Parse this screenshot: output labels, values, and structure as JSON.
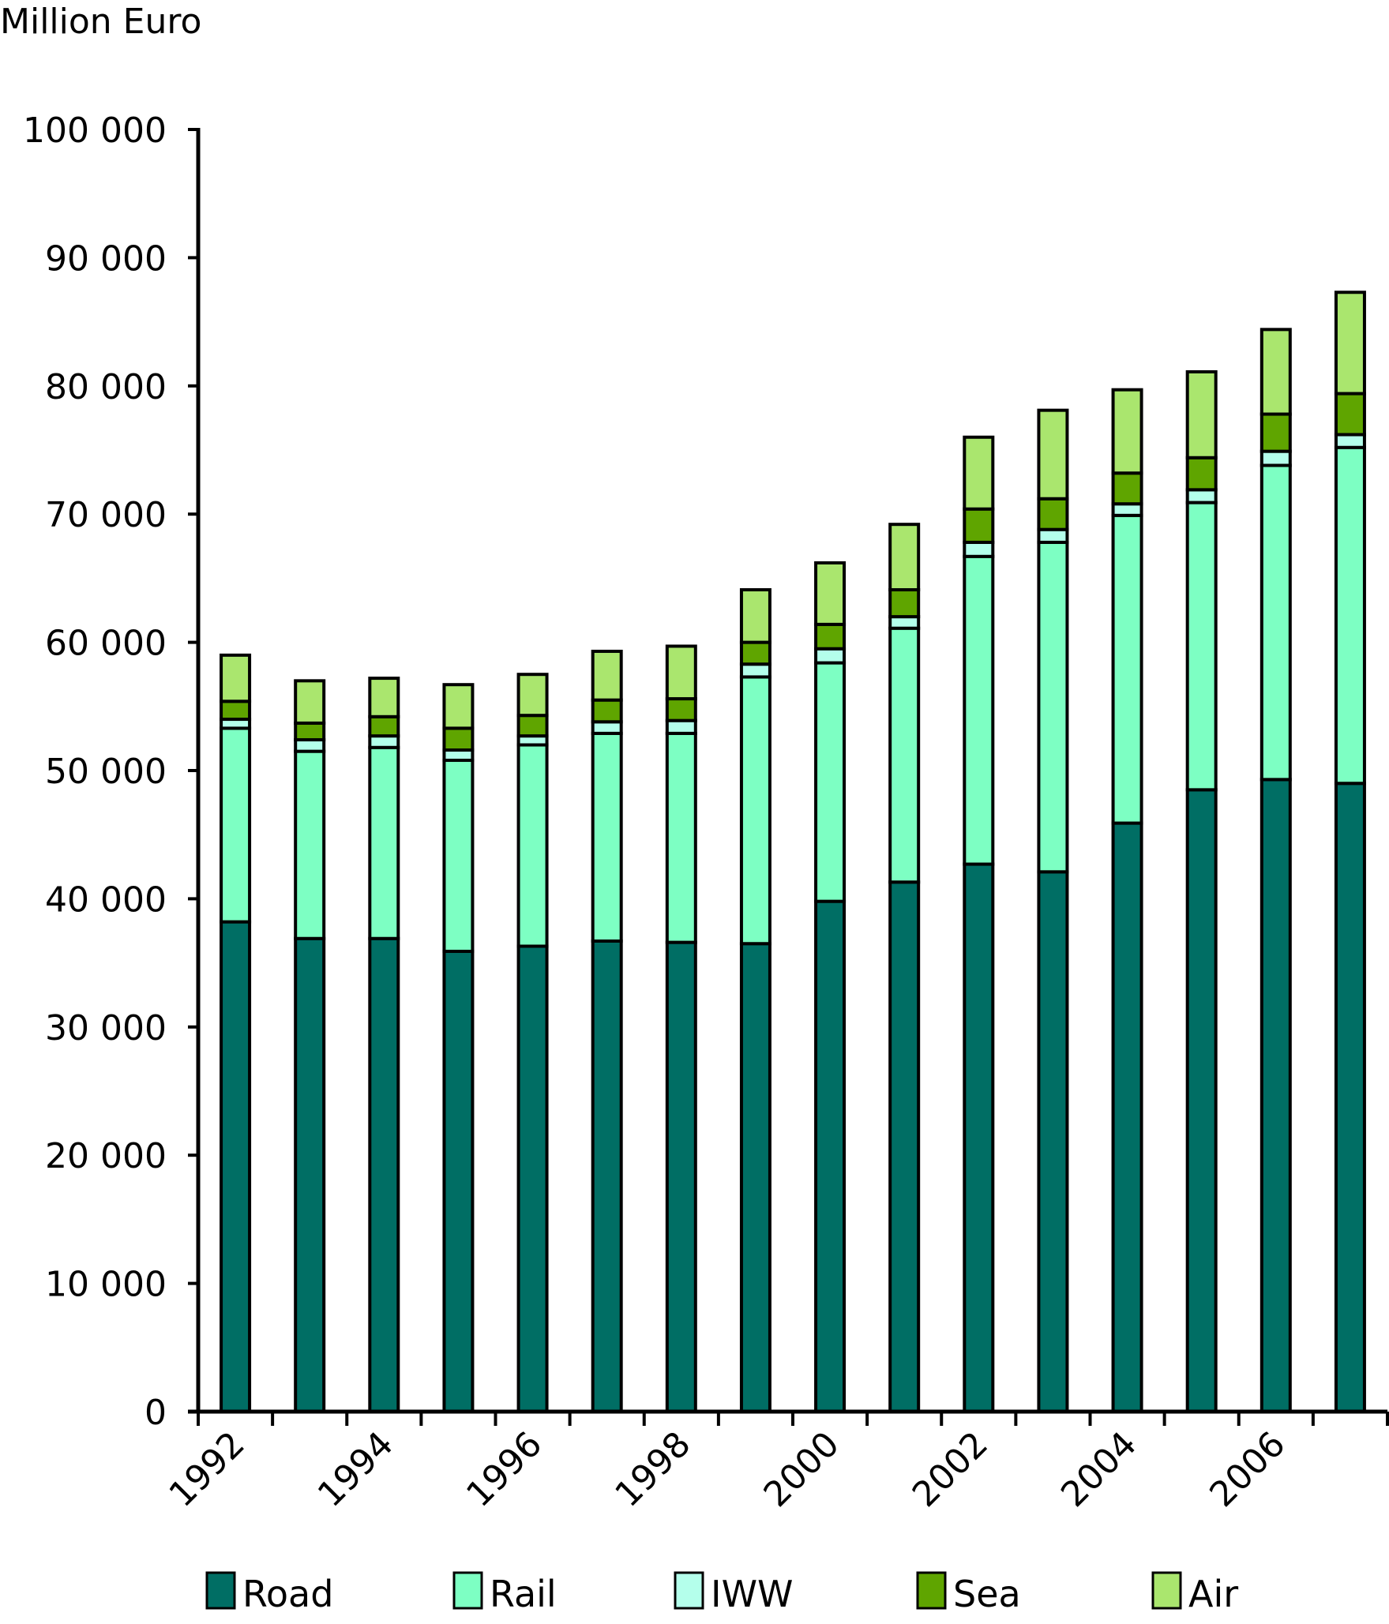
{
  "chart_data": {
    "type": "bar",
    "stacked": true,
    "title": "",
    "ylabel": "Million Euro",
    "xlabel": "",
    "ylim": [
      0,
      100000
    ],
    "yticks": [
      0,
      10000,
      20000,
      30000,
      40000,
      50000,
      60000,
      70000,
      80000,
      90000,
      100000
    ],
    "ytick_labels": [
      "0",
      "10 000",
      "20 000",
      "30 000",
      "40 000",
      "50 000",
      "60 000",
      "70 000",
      "80 000",
      "90 000",
      "100 000"
    ],
    "categories": [
      "1992",
      "1993",
      "1994",
      "1995",
      "1996",
      "1997",
      "1998",
      "1999",
      "2000",
      "2001",
      "2002",
      "2003",
      "2004",
      "2005",
      "2006",
      "2007"
    ],
    "xtick_labels": [
      "1992",
      "",
      "1994",
      "",
      "1996",
      "",
      "1998",
      "",
      "2000",
      "",
      "2002",
      "",
      "2004",
      "",
      "2006",
      ""
    ],
    "grid": false,
    "legend_position": "bottom",
    "series": [
      {
        "name": "Road",
        "color": "#006e64",
        "values": [
          38200,
          36900,
          36900,
          35900,
          36300,
          36700,
          36600,
          36500,
          39800,
          41300,
          42700,
          42100,
          45900,
          48500,
          49300,
          49000
        ]
      },
      {
        "name": "Rail",
        "color": "#7dffc3",
        "values": [
          15100,
          14600,
          14900,
          14900,
          15700,
          16200,
          16300,
          20800,
          18600,
          19800,
          24000,
          25700,
          24000,
          22400,
          24500,
          26200
        ]
      },
      {
        "name": "IWW",
        "color": "#b4ffeb",
        "values": [
          700,
          900,
          900,
          800,
          700,
          900,
          1000,
          1000,
          1100,
          900,
          1100,
          1000,
          900,
          1000,
          1100,
          1000
        ]
      },
      {
        "name": "Sea",
        "color": "#5fa500",
        "values": [
          1400,
          1300,
          1500,
          1700,
          1600,
          1700,
          1700,
          1700,
          1900,
          2100,
          2600,
          2400,
          2400,
          2500,
          2900,
          3200
        ]
      },
      {
        "name": "Air",
        "color": "#aae66e",
        "values": [
          3600,
          3300,
          3000,
          3400,
          3200,
          3800,
          4100,
          4100,
          4800,
          5100,
          5600,
          6900,
          6500,
          6700,
          6600,
          7900
        ]
      }
    ]
  }
}
